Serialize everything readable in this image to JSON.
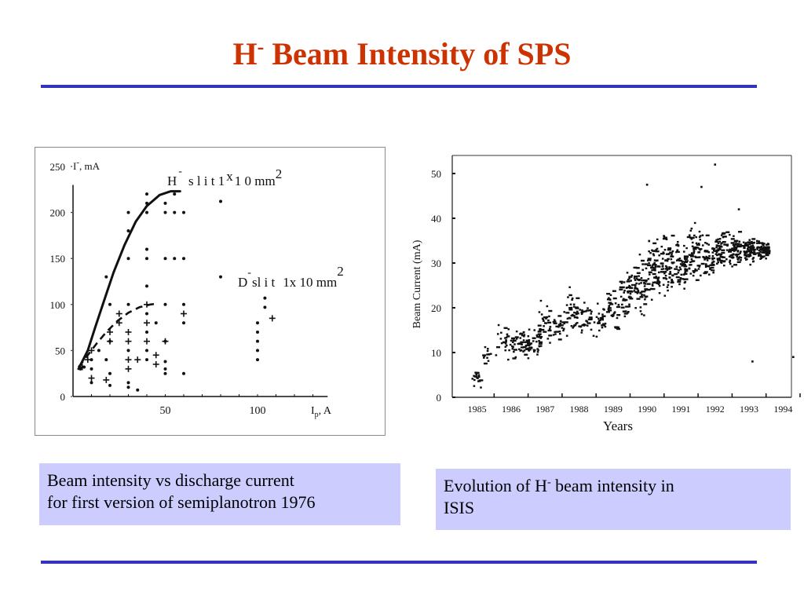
{
  "slide": {
    "title_main": "H",
    "title_sup": "-",
    "title_rest": " Beam Intensity of SPS",
    "accent_color": "#cc3300",
    "rule_color": "#3333bb",
    "caption_bg": "#ccccff"
  },
  "captions": {
    "left_line1": "Beam intensity vs discharge current",
    "left_line2": "for first version of semiplanotron 1976",
    "right_pre": "Evolution of H",
    "right_sup": "-",
    "right_post": " beam intensity in",
    "right_line2": "ISIS"
  },
  "chart_data": [
    {
      "type": "scatter",
      "title": "",
      "ylabel": "Ī, mA",
      "ylabel_main": "I",
      "ylabel_sup": "-",
      "ylabel_rest": ", mA",
      "xlabel": "Ip, A",
      "xlabel_main": "I",
      "xlabel_sub": "p",
      "xlabel_rest": ", A",
      "xlim": [
        0,
        140
      ],
      "ylim": [
        0,
        250
      ],
      "y_ticks": [
        0,
        50,
        100,
        150,
        200,
        250
      ],
      "x_ticks": [
        50,
        100
      ],
      "annotations": {
        "h_slit": {
          "ion": "H",
          "ion_sup": "-",
          "text": "s l i t  1",
          "x_char": "x",
          "after": "1 0  mm",
          "exp": "2"
        },
        "d_slit": {
          "ion": "D",
          "ion_sup": "-",
          "text": "sl i t",
          "after": "1x 10 mm",
          "exp": "2"
        }
      },
      "series": [
        {
          "name": "H- slit 1x10 mm2 (fit)",
          "style": "solid-line",
          "points": [
            [
              3,
              30
            ],
            [
              8,
              50
            ],
            [
              12,
              75
            ],
            [
              17,
              105
            ],
            [
              22,
              135
            ],
            [
              28,
              165
            ],
            [
              34,
              190
            ],
            [
              40,
              207
            ],
            [
              47,
              219
            ],
            [
              53,
              223
            ],
            [
              58,
              223
            ]
          ]
        },
        {
          "name": "D- slit 1x10 mm2 (fit)",
          "style": "dashed-line",
          "points": [
            [
              3,
              32
            ],
            [
              8,
              45
            ],
            [
              13,
              58
            ],
            [
              18,
              70
            ],
            [
              24,
              82
            ],
            [
              30,
              91
            ],
            [
              36,
              97
            ],
            [
              42,
              100
            ],
            [
              46,
              101
            ]
          ]
        },
        {
          "name": "H- data (dots)",
          "style": "dot",
          "points": [
            [
              30,
              200
            ],
            [
              30,
              180
            ],
            [
              30,
              150
            ],
            [
              40,
              220
            ],
            [
              40,
              210
            ],
            [
              40,
              200
            ],
            [
              40,
              160
            ],
            [
              40,
              150
            ],
            [
              40,
              120
            ],
            [
              50,
              210
            ],
            [
              50,
              200
            ],
            [
              50,
              150
            ],
            [
              55,
              220
            ],
            [
              55,
              200
            ],
            [
              55,
              150
            ],
            [
              60,
              200
            ],
            [
              60,
              150
            ],
            [
              18,
              130
            ],
            [
              80,
              212
            ],
            [
              80,
              130
            ],
            [
              100,
              80
            ],
            [
              100,
              70
            ],
            [
              100,
              60
            ],
            [
              100,
              50
            ],
            [
              100,
              40
            ],
            [
              104,
              107
            ],
            [
              104,
              97
            ]
          ]
        },
        {
          "name": "D- data (dots)",
          "style": "dot",
          "points": [
            [
              4,
              30
            ],
            [
              6,
              32
            ],
            [
              10,
              30
            ],
            [
              10,
              15
            ],
            [
              10,
              40
            ],
            [
              14,
              50
            ],
            [
              18,
              40
            ],
            [
              20,
              100
            ],
            [
              20,
              25
            ],
            [
              20,
              12
            ],
            [
              30,
              100
            ],
            [
              30,
              50
            ],
            [
              30,
              15
            ],
            [
              30,
              10
            ],
            [
              35,
              7
            ],
            [
              40,
              90
            ],
            [
              40,
              70
            ],
            [
              40,
              50
            ],
            [
              40,
              40
            ],
            [
              45,
              80
            ],
            [
              50,
              100
            ],
            [
              50,
              38
            ],
            [
              50,
              30
            ],
            [
              50,
              25
            ],
            [
              60,
              100
            ],
            [
              60,
              80
            ],
            [
              60,
              25
            ],
            [
              20,
              60
            ],
            [
              50,
              60
            ]
          ]
        },
        {
          "name": "D- data (crosses)",
          "style": "cross",
          "points": [
            [
              5,
              32
            ],
            [
              8,
              40
            ],
            [
              10,
              20
            ],
            [
              10,
              50
            ],
            [
              18,
              18
            ],
            [
              20,
              70
            ],
            [
              20,
              60
            ],
            [
              25,
              80
            ],
            [
              25,
              90
            ],
            [
              30,
              70
            ],
            [
              30,
              60
            ],
            [
              30,
              40
            ],
            [
              30,
              30
            ],
            [
              35,
              40
            ],
            [
              40,
              100
            ],
            [
              40,
              80
            ],
            [
              40,
              60
            ],
            [
              45,
              45
            ],
            [
              45,
              35
            ],
            [
              50,
              60
            ],
            [
              60,
              90
            ],
            [
              108,
              85
            ]
          ]
        }
      ]
    },
    {
      "type": "scatter",
      "title": "",
      "ylabel": "Beam Current (mA)",
      "xlabel": "Years",
      "xlim": [
        1984.5,
        1994.5
      ],
      "ylim": [
        0,
        50
      ],
      "y_ticks": [
        0,
        10,
        20,
        30,
        40,
        50
      ],
      "x_tick_labels": [
        "1985",
        "1986",
        "1987",
        "1988",
        "1989",
        "1990",
        "1991",
        "1992",
        "1993",
        "1994"
      ],
      "grid": false,
      "series": [
        {
          "name": "Beam current",
          "style": "dot",
          "clusters": [
            {
              "year": 1985.0,
              "mean": 4,
              "spread": 2,
              "n": 18
            },
            {
              "year": 1985.3,
              "mean": 9,
              "spread": 2.5,
              "n": 12
            },
            {
              "year": 1985.7,
              "mean": 13,
              "spread": 3,
              "n": 14
            },
            {
              "year": 1986.0,
              "mean": 12,
              "spread": 3,
              "n": 30
            },
            {
              "year": 1986.4,
              "mean": 12,
              "spread": 3,
              "n": 40
            },
            {
              "year": 1986.7,
              "mean": 12,
              "spread": 3,
              "n": 30
            },
            {
              "year": 1987.0,
              "mean": 17,
              "spread": 4,
              "n": 30
            },
            {
              "year": 1987.4,
              "mean": 16,
              "spread": 3,
              "n": 25
            },
            {
              "year": 1987.8,
              "mean": 19,
              "spread": 4,
              "n": 40
            },
            {
              "year": 1988.2,
              "mean": 18,
              "spread": 4,
              "n": 30
            },
            {
              "year": 1988.6,
              "mean": 17,
              "spread": 3,
              "n": 30
            },
            {
              "year": 1989.0,
              "mean": 20,
              "spread": 4,
              "n": 35
            },
            {
              "year": 1989.4,
              "mean": 23,
              "spread": 5,
              "n": 50
            },
            {
              "year": 1989.8,
              "mean": 25,
              "spread": 5,
              "n": 60
            },
            {
              "year": 1990.2,
              "mean": 28,
              "spread": 6,
              "n": 70
            },
            {
              "year": 1990.6,
              "mean": 29,
              "spread": 6,
              "n": 70
            },
            {
              "year": 1991.0,
              "mean": 30,
              "spread": 5,
              "n": 60
            },
            {
              "year": 1991.4,
              "mean": 32,
              "spread": 5,
              "n": 60
            },
            {
              "year": 1991.8,
              "mean": 31,
              "spread": 4,
              "n": 50
            },
            {
              "year": 1992.2,
              "mean": 33,
              "spread": 3,
              "n": 60
            },
            {
              "year": 1992.6,
              "mean": 33,
              "spread": 3,
              "n": 60
            },
            {
              "year": 1993.0,
              "mean": 33,
              "spread": 2.5,
              "n": 70
            },
            {
              "year": 1993.4,
              "mean": 33,
              "spread": 2,
              "n": 70
            }
          ],
          "outliers": [
            [
              1990.0,
              47.5
            ],
            [
              1991.6,
              47
            ],
            [
              1992.0,
              52
            ],
            [
              1992.7,
              42
            ],
            [
              1993.1,
              8
            ],
            [
              1994.3,
              9
            ]
          ]
        }
      ]
    }
  ]
}
